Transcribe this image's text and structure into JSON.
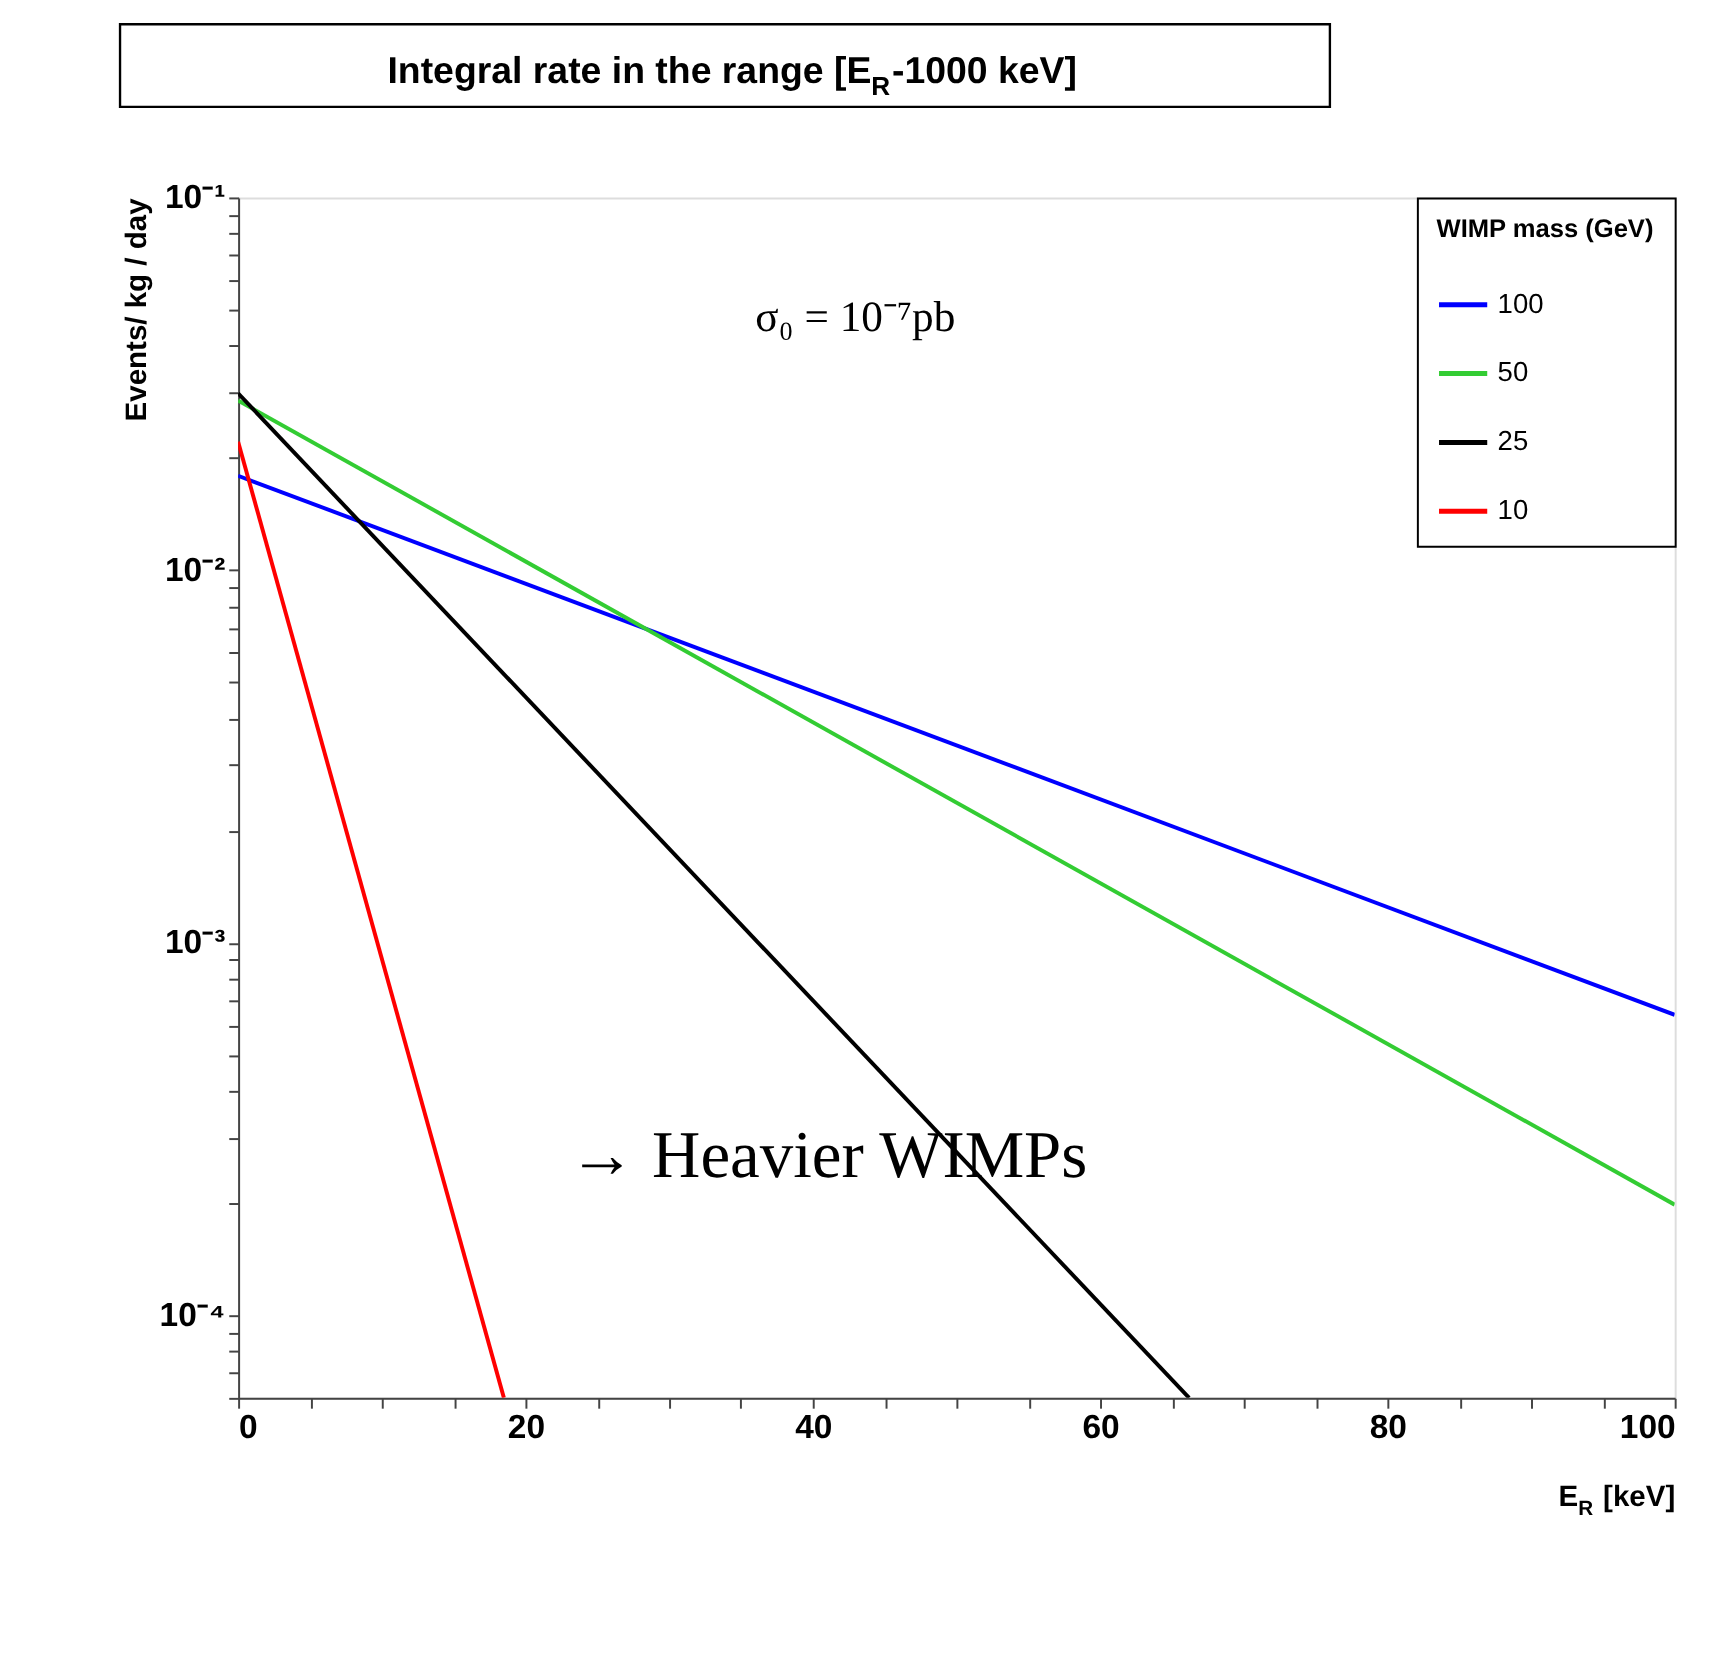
{
  "chart_data": {
    "type": "line",
    "title": "Integral rate in the range [E$_{R}$-1000 keV]",
    "xlabel": "E$_{R}$ [keV]",
    "ylabel": "Events/ kg / day",
    "legend_title": "WIMP mass (GeV)",
    "series": [
      {
        "name": "100",
        "color": "#0000ff",
        "x": [
          0,
          100
        ],
        "values": [
          0.0179,
          0.00064
        ]
      },
      {
        "name": "50",
        "color": "#33cc33",
        "x": [
          0,
          100
        ],
        "values": [
          0.0285,
          0.000198
        ]
      },
      {
        "name": "25",
        "color": "#000000",
        "x": [
          0,
          66.2
        ],
        "values": [
          0.0298,
          6e-05
        ]
      },
      {
        "name": "10",
        "color": "#ff0000",
        "x": [
          0,
          18.5
        ],
        "values": [
          0.0221,
          6e-05
        ]
      }
    ],
    "xlim": [
      0,
      100
    ],
    "xticks": [
      0,
      {
        "value": 5,
        "label": null
      },
      {
        "value": 10,
        "label": null
      },
      {
        "value": 15,
        "label": null
      },
      20,
      {
        "value": 25,
        "label": null
      },
      {
        "value": 30,
        "label": null
      },
      {
        "value": 35,
        "label": null
      },
      40,
      {
        "value": 45,
        "label": null
      },
      {
        "value": 50,
        "label": null
      },
      {
        "value": 55,
        "label": null
      },
      60,
      {
        "value": 65,
        "label": null
      },
      {
        "value": 70,
        "label": null
      },
      {
        "value": 75,
        "label": null
      },
      80,
      {
        "value": 85,
        "label": null
      },
      {
        "value": 90,
        "label": null
      },
      {
        "value": 95,
        "label": null
      },
      100
    ],
    "ylim": [
      6e-05,
      0.1
    ],
    "yticks": [
      {
        "value": 6e-05,
        "label": null
      },
      {
        "value": 7e-05,
        "label": null
      },
      {
        "value": 8e-05,
        "label": null
      },
      {
        "value": 9e-05,
        "label": null
      },
      {
        "value": 0.0001,
        "label": "10⁻⁴"
      },
      {
        "value": 0.0002,
        "label": null
      },
      {
        "value": 0.0003,
        "label": null
      },
      {
        "value": 0.0004,
        "label": null
      },
      {
        "value": 0.0005,
        "label": null
      },
      {
        "value": 0.0006,
        "label": null
      },
      {
        "value": 0.0007,
        "label": null
      },
      {
        "value": 0.0008,
        "label": null
      },
      {
        "value": 0.0009,
        "label": null
      },
      {
        "value": 0.001,
        "label": "10⁻³"
      },
      {
        "value": 0.002,
        "label": null
      },
      {
        "value": 0.003,
        "label": null
      },
      {
        "value": 0.004,
        "label": null
      },
      {
        "value": 0.005,
        "label": null
      },
      {
        "value": 0.006,
        "label": null
      },
      {
        "value": 0.007,
        "label": null
      },
      {
        "value": 0.008,
        "label": null
      },
      {
        "value": 0.009,
        "label": null
      },
      {
        "value": 0.01,
        "label": "10⁻²"
      },
      {
        "value": 0.02,
        "label": null
      },
      {
        "value": 0.03,
        "label": null
      },
      {
        "value": 0.04,
        "label": null
      },
      {
        "value": 0.05,
        "label": null
      },
      {
        "value": 0.06,
        "label": null
      },
      {
        "value": 0.07,
        "label": null
      },
      {
        "value": 0.08,
        "label": null
      },
      {
        "value": 0.09,
        "label": null
      },
      {
        "value": 0.1,
        "label": "10⁻¹"
      }
    ],
    "log": "y",
    "grid": false,
    "legend": "top right",
    "marker": "none",
    "line_style": "solid",
    "annotations": [
      "σ₀ = 10⁻⁷pb",
      "→ Heavier WIMPs"
    ]
  }
}
